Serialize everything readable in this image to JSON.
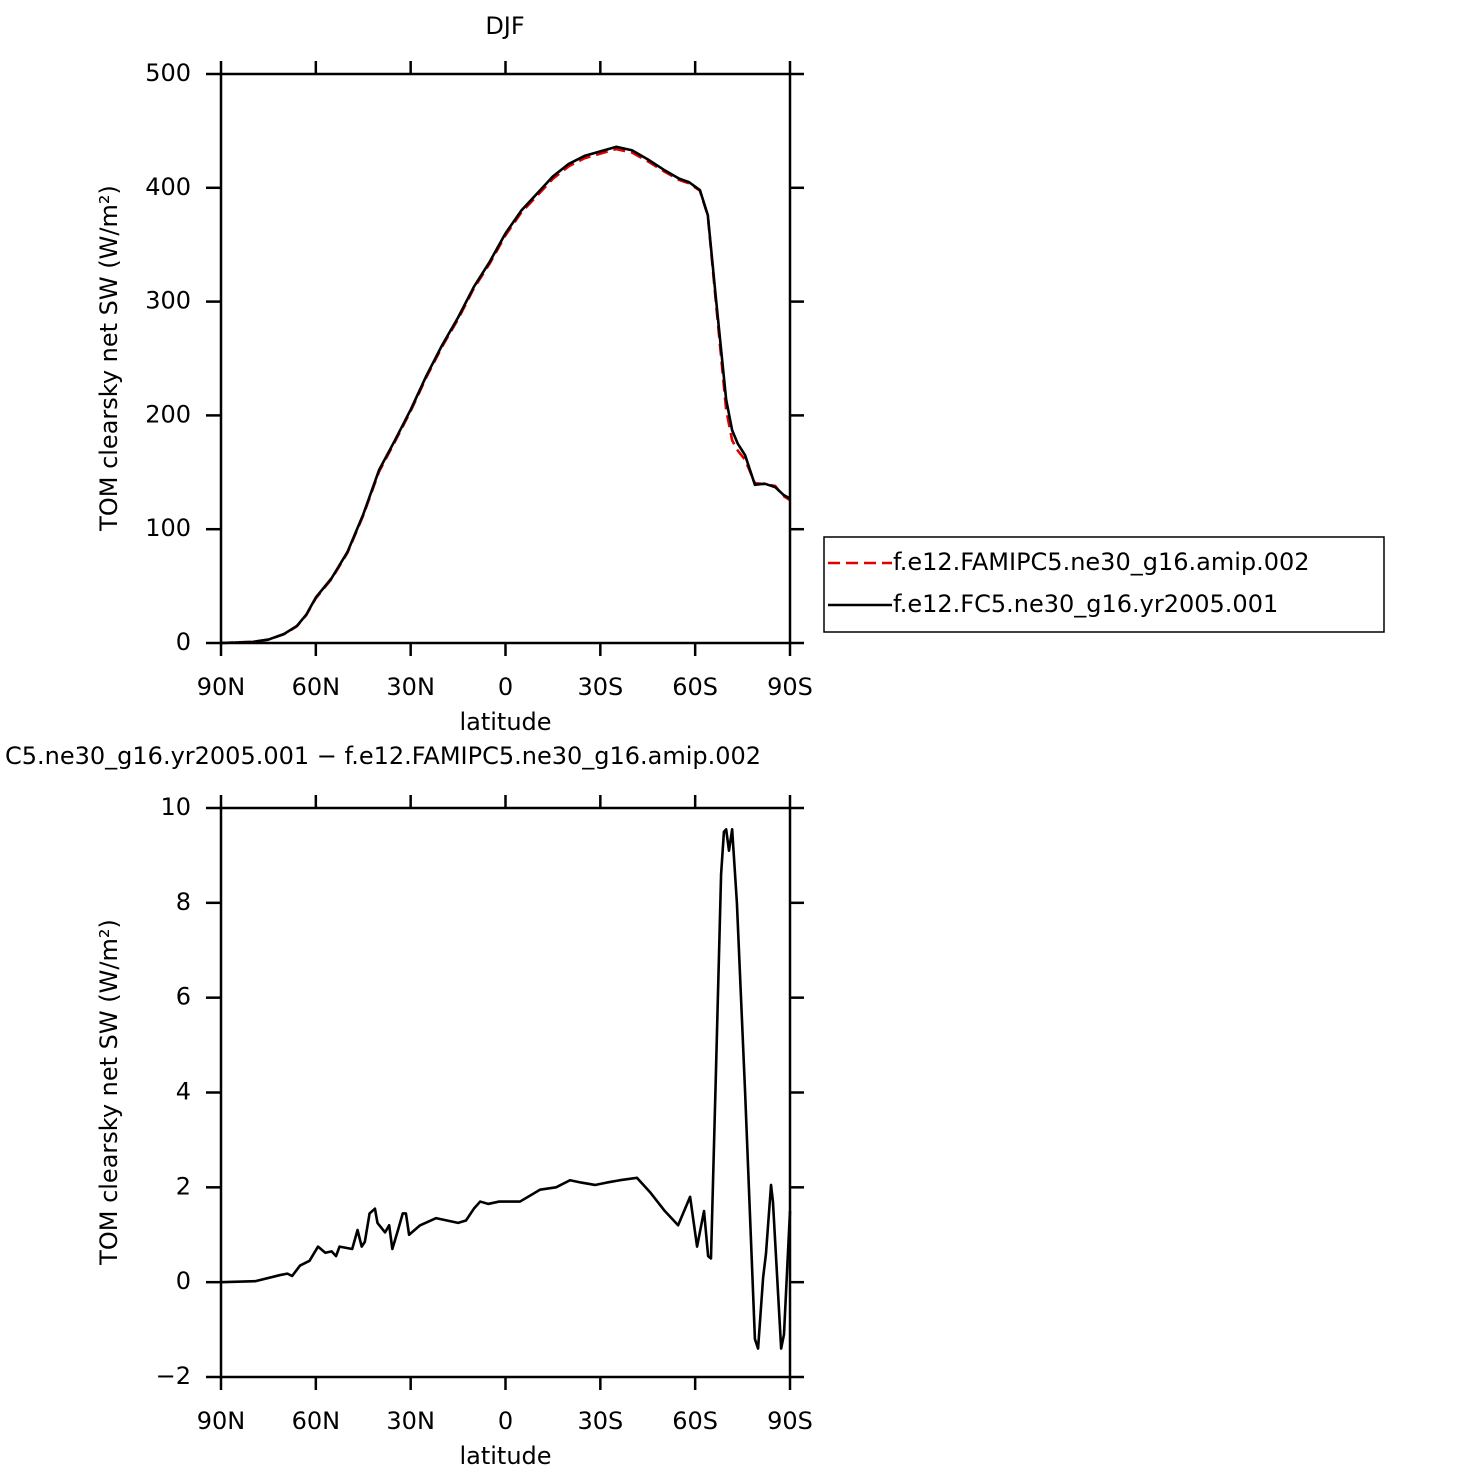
{
  "chart_data": [
    {
      "type": "line",
      "title": "DJF",
      "xlabel": "latitude",
      "ylabel": "TOM clearsky net SW (W/m²)",
      "x": [
        90,
        80,
        75,
        70,
        66,
        63,
        60,
        55,
        50,
        45,
        40,
        35,
        30,
        25,
        20,
        15,
        10,
        5,
        0,
        -5,
        -10,
        -15,
        -20,
        -25,
        -30,
        -35,
        -40,
        -45,
        -50,
        -55,
        -58,
        -61.5,
        -64,
        -66.6,
        -69.8,
        -71.7,
        -73.5,
        -75.8,
        -78.9,
        -82,
        -85.3,
        -88,
        -90
      ],
      "series": [
        {
          "name": "f.e12.FAMIPC5.ne30_g16.amip.002",
          "color": "#e00000",
          "linestyle": "dashed",
          "values": [
            0,
            1,
            2.9,
            7.8,
            14.7,
            24.6,
            39.3,
            56.3,
            79.2,
            112.1,
            150.6,
            176.8,
            203.8,
            233.7,
            260.7,
            284.6,
            311.7,
            333.4,
            358.3,
            378.3,
            393,
            408,
            418.9,
            426,
            430,
            434,
            431,
            423.3,
            414.7,
            406.8,
            404,
            397.5,
            375.5,
            298,
            205,
            178,
            169,
            161,
            140.4,
            139.6,
            138,
            129,
            125.5
          ]
        },
        {
          "name": "f.e12.FC5.ne30_g16.yr2005.001",
          "color": "#000000",
          "linestyle": "solid",
          "values": [
            0,
            1,
            3,
            8,
            15,
            25,
            40,
            57,
            80,
            113,
            152,
            178,
            205,
            235,
            262,
            286,
            313,
            335,
            360,
            380,
            395,
            410,
            421,
            428,
            432,
            436,
            433,
            425,
            416,
            408,
            405,
            398,
            376,
            302,
            214,
            187,
            175,
            165,
            139,
            140,
            137,
            130,
            127
          ]
        }
      ],
      "xlim": [
        90,
        -90
      ],
      "xticks": [
        {
          "value": 90,
          "label": "90N"
        },
        {
          "value": 60,
          "label": "60N"
        },
        {
          "value": 30,
          "label": "30N"
        },
        0,
        {
          "value": -30,
          "label": "30S"
        },
        {
          "value": -60,
          "label": "60S"
        },
        {
          "value": -90,
          "label": "90S"
        }
      ],
      "ylim": [
        0,
        500
      ],
      "yticks": [
        0,
        100,
        200,
        300,
        400,
        500
      ],
      "legend": "right"
    },
    {
      "type": "line",
      "title": "C5.ne30_g16.yr2005.001 − f.e12.FAMIPC5.ne30_g16.amip.002",
      "xlabel": "latitude",
      "ylabel": "TOM clearsky net SW (W/m²)",
      "x": [
        90,
        79.2,
        71.3,
        69,
        67.5,
        65,
        62,
        59.3,
        57,
        55,
        53.6,
        52.5,
        48.5,
        46.8,
        45.5,
        44.5,
        43,
        41.3,
        40.5,
        38.1,
        36.8,
        35.8,
        34,
        32.5,
        31.5,
        30.5,
        27,
        22,
        15,
        12.5,
        10,
        8,
        5.5,
        2,
        0,
        -4.6,
        -10.9,
        -16,
        -20.4,
        -24,
        -28.3,
        -32,
        -36.2,
        -41.6,
        -45.7,
        -50.4,
        -54.6,
        -58.4,
        -60.6,
        -62.8,
        -64.1,
        -65,
        -66.6,
        -68.2,
        -69.1,
        -69.8,
        -70.7,
        -71.7,
        -73.2,
        -75.8,
        -78.9,
        -79.9,
        -81.5,
        -82.4,
        -84,
        -84.6,
        -87.2,
        -88.1,
        -90
      ],
      "series": [
        {
          "color": "#000000",
          "linestyle": "solid",
          "values": [
            0,
            0.02,
            0.15,
            0.18,
            0.13,
            0.35,
            0.45,
            0.75,
            0.62,
            0.65,
            0.55,
            0.75,
            0.7,
            1.1,
            0.75,
            0.85,
            1.45,
            1.55,
            1.25,
            1.05,
            1.2,
            0.7,
            1.1,
            1.45,
            1.45,
            1.0,
            1.2,
            1.35,
            1.25,
            1.3,
            1.55,
            1.7,
            1.65,
            1.7,
            1.7,
            1.7,
            1.95,
            2.0,
            2.15,
            2.1,
            2.05,
            2.1,
            2.15,
            2.2,
            1.9,
            1.5,
            1.2,
            1.8,
            0.75,
            1.5,
            0.55,
            0.5,
            4.5,
            8.6,
            9.5,
            9.55,
            9.1,
            9.55,
            8.0,
            4.0,
            -1.2,
            -1.4,
            0.1,
            0.6,
            2.05,
            1.7,
            -1.4,
            -1.1,
            1.5
          ]
        }
      ],
      "xlim": [
        90,
        -90
      ],
      "xticks": [
        {
          "value": 90,
          "label": "90N"
        },
        {
          "value": 60,
          "label": "60N"
        },
        {
          "value": 30,
          "label": "30N"
        },
        0,
        {
          "value": -30,
          "label": "30S"
        },
        {
          "value": -60,
          "label": "60S"
        },
        {
          "value": -90,
          "label": "90S"
        }
      ],
      "ylim": [
        -2,
        10
      ],
      "yticks": [
        {
          "value": -2,
          "label": "−2"
        },
        0,
        2,
        4,
        6,
        8,
        10
      ]
    }
  ]
}
